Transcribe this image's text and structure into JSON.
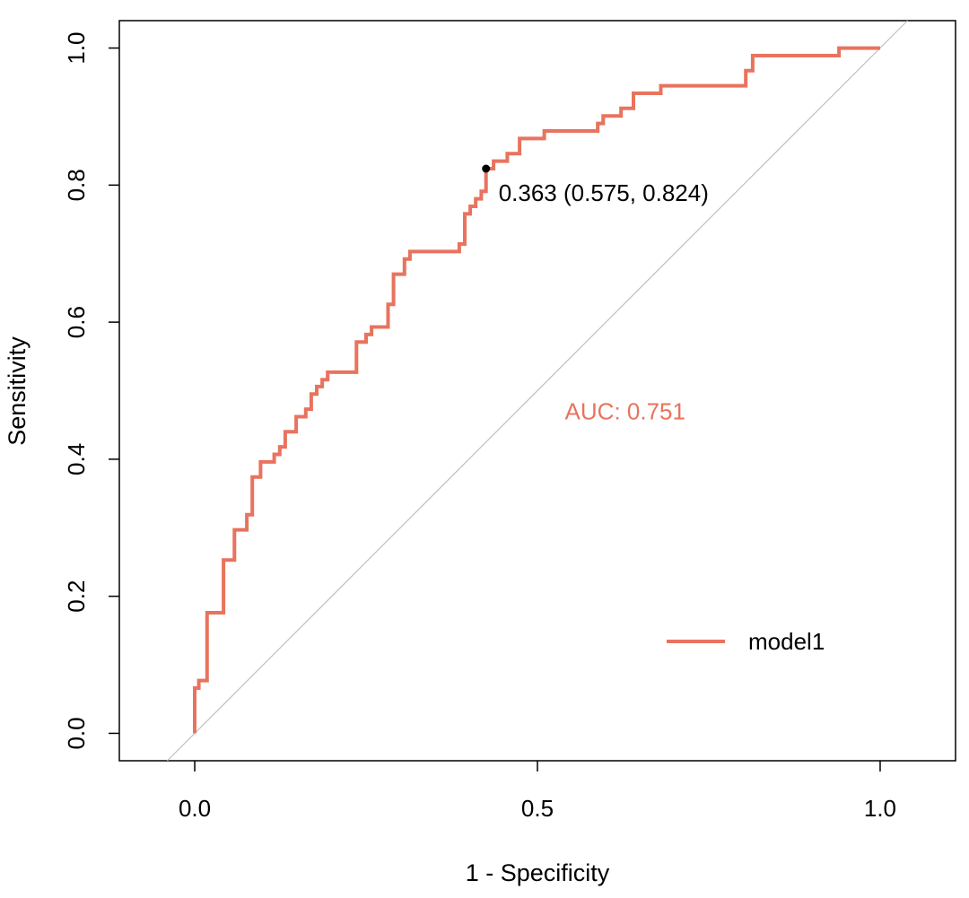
{
  "chart_data": {
    "type": "line",
    "title": "",
    "xlabel": "1 - Specificity",
    "ylabel": "Sensitivity",
    "xlim": [
      -0.11,
      1.11
    ],
    "ylim": [
      -0.04,
      1.04
    ],
    "xticks": [
      0.0,
      0.5,
      1.0
    ],
    "xtick_labels": [
      "0.0",
      "0.5",
      "1.0"
    ],
    "yticks": [
      0.0,
      0.2,
      0.4,
      0.6,
      0.8,
      1.0
    ],
    "ytick_labels": [
      "0.0",
      "0.2",
      "0.4",
      "0.6",
      "0.8",
      "1.0"
    ],
    "grid": false,
    "series": [
      {
        "name": "model1",
        "color": "#E8735E",
        "points": [
          [
            0.0,
            0.0
          ],
          [
            0.0,
            0.066
          ],
          [
            0.006,
            0.066
          ],
          [
            0.006,
            0.077
          ],
          [
            0.018,
            0.077
          ],
          [
            0.018,
            0.176
          ],
          [
            0.042,
            0.176
          ],
          [
            0.042,
            0.253
          ],
          [
            0.058,
            0.253
          ],
          [
            0.058,
            0.297
          ],
          [
            0.076,
            0.297
          ],
          [
            0.076,
            0.319
          ],
          [
            0.084,
            0.319
          ],
          [
            0.084,
            0.374
          ],
          [
            0.096,
            0.374
          ],
          [
            0.096,
            0.396
          ],
          [
            0.116,
            0.396
          ],
          [
            0.116,
            0.407
          ],
          [
            0.124,
            0.407
          ],
          [
            0.124,
            0.418
          ],
          [
            0.132,
            0.418
          ],
          [
            0.132,
            0.44
          ],
          [
            0.148,
            0.44
          ],
          [
            0.148,
            0.462
          ],
          [
            0.162,
            0.462
          ],
          [
            0.162,
            0.473
          ],
          [
            0.17,
            0.473
          ],
          [
            0.17,
            0.495
          ],
          [
            0.178,
            0.495
          ],
          [
            0.178,
            0.506
          ],
          [
            0.186,
            0.506
          ],
          [
            0.186,
            0.516
          ],
          [
            0.194,
            0.516
          ],
          [
            0.194,
            0.527
          ],
          [
            0.236,
            0.527
          ],
          [
            0.236,
            0.571
          ],
          [
            0.25,
            0.571
          ],
          [
            0.25,
            0.582
          ],
          [
            0.258,
            0.582
          ],
          [
            0.258,
            0.593
          ],
          [
            0.282,
            0.593
          ],
          [
            0.282,
            0.626
          ],
          [
            0.29,
            0.626
          ],
          [
            0.29,
            0.67
          ],
          [
            0.306,
            0.67
          ],
          [
            0.306,
            0.692
          ],
          [
            0.314,
            0.692
          ],
          [
            0.314,
            0.703
          ],
          [
            0.386,
            0.703
          ],
          [
            0.386,
            0.714
          ],
          [
            0.394,
            0.714
          ],
          [
            0.394,
            0.758
          ],
          [
            0.402,
            0.758
          ],
          [
            0.402,
            0.769
          ],
          [
            0.41,
            0.769
          ],
          [
            0.41,
            0.78
          ],
          [
            0.418,
            0.78
          ],
          [
            0.418,
            0.791
          ],
          [
            0.425,
            0.791
          ],
          [
            0.425,
            0.824
          ],
          [
            0.436,
            0.824
          ],
          [
            0.436,
            0.835
          ],
          [
            0.456,
            0.835
          ],
          [
            0.456,
            0.846
          ],
          [
            0.474,
            0.846
          ],
          [
            0.474,
            0.868
          ],
          [
            0.51,
            0.868
          ],
          [
            0.51,
            0.879
          ],
          [
            0.588,
            0.879
          ],
          [
            0.588,
            0.89
          ],
          [
            0.596,
            0.89
          ],
          [
            0.596,
            0.901
          ],
          [
            0.622,
            0.901
          ],
          [
            0.622,
            0.912
          ],
          [
            0.64,
            0.912
          ],
          [
            0.64,
            0.934
          ],
          [
            0.68,
            0.934
          ],
          [
            0.68,
            0.945
          ],
          [
            0.804,
            0.945
          ],
          [
            0.804,
            0.967
          ],
          [
            0.814,
            0.967
          ],
          [
            0.814,
            0.989
          ],
          [
            0.94,
            0.989
          ],
          [
            0.94,
            1.0
          ],
          [
            1.0,
            1.0
          ]
        ]
      }
    ],
    "reference_line": {
      "color": "#C0C0C0",
      "from": [
        -0.04,
        -0.04
      ],
      "to": [
        1.04,
        1.04
      ]
    },
    "best_point": {
      "x": 0.425,
      "y": 0.824,
      "label": "0.363 (0.575, 0.824)"
    },
    "auc_label": {
      "text": "AUC: 0.751",
      "x": 0.54,
      "y": 0.47,
      "color": "#E8735E"
    },
    "legend": {
      "position": "bottom-right",
      "entries": [
        {
          "label": "model1",
          "color": "#E8735E"
        }
      ]
    }
  }
}
